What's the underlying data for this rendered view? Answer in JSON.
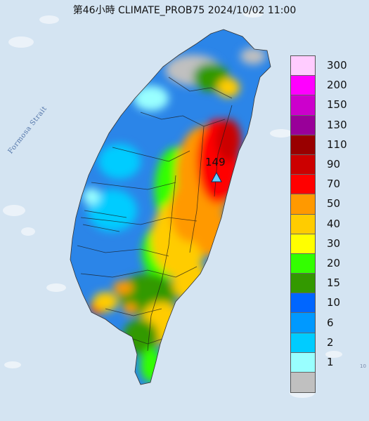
{
  "title": "第46小時  CLIMATE_PROB75 2024/10/02 11:00",
  "map": {
    "strait_label": "Formosa Strait",
    "peak": {
      "value_label": "149",
      "marker": "triangle-marker-icon",
      "color": "#66ccff"
    }
  },
  "legend": [
    {
      "label": "300",
      "color": "#ffccff"
    },
    {
      "label": "200",
      "color": "#ff00ff"
    },
    {
      "label": "150",
      "color": "#cc00cc"
    },
    {
      "label": "130",
      "color": "#990099"
    },
    {
      "label": "110",
      "color": "#990000"
    },
    {
      "label": "90",
      "color": "#cc0000"
    },
    {
      "label": "70",
      "color": "#ff0000"
    },
    {
      "label": "50",
      "color": "#ff9900"
    },
    {
      "label": "40",
      "color": "#ffcc00"
    },
    {
      "label": "30",
      "color": "#ffff00"
    },
    {
      "label": "20",
      "color": "#33ff00"
    },
    {
      "label": "15",
      "color": "#339900"
    },
    {
      "label": "10",
      "color": "#0066ff"
    },
    {
      "label": "6",
      "color": "#0099ff"
    },
    {
      "label": "2",
      "color": "#00ccff"
    },
    {
      "label": "1",
      "color": "#99ffff"
    },
    {
      "label": "",
      "color": "#c0c0c0"
    }
  ],
  "colors": {
    "sea": "#d4e4f2",
    "county_lines": "#1a1a1a"
  }
}
